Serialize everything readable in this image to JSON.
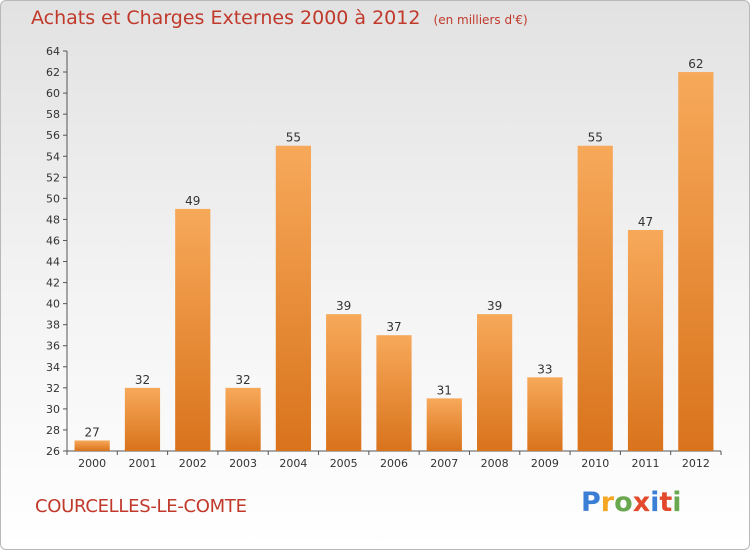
{
  "header": {
    "title": "Achats et Charges Externes 2000 à 2012",
    "unit": "(en milliers d'€)"
  },
  "footer": {
    "location": "COURCELLES-LE-COMTE",
    "logo": {
      "letters": [
        "P",
        "r",
        "o",
        "x",
        "i",
        "t",
        "i"
      ],
      "colors": [
        "#3a7fd5",
        "#f5a623",
        "#6aa84f",
        "#e24a2b",
        "#3a7fd5",
        "#e24a2b",
        "#6aa84f"
      ]
    }
  },
  "colors": {
    "bar_top": "#f7a95a",
    "bar_bottom": "#d9731c",
    "title": "#c0392b",
    "axis_text": "#333333"
  },
  "chart_data": {
    "type": "bar",
    "title": "Achats et Charges Externes 2000 à 2012",
    "subtitle": "(en milliers d'€)",
    "categories": [
      "2000",
      "2001",
      "2002",
      "2003",
      "2004",
      "2005",
      "2006",
      "2007",
      "2008",
      "2009",
      "2010",
      "2011",
      "2012"
    ],
    "values": [
      27,
      32,
      49,
      32,
      55,
      39,
      37,
      31,
      39,
      33,
      55,
      47,
      62
    ],
    "ylim": [
      26,
      64
    ],
    "ytick_step": 2,
    "grid": false,
    "data_labels": true
  }
}
